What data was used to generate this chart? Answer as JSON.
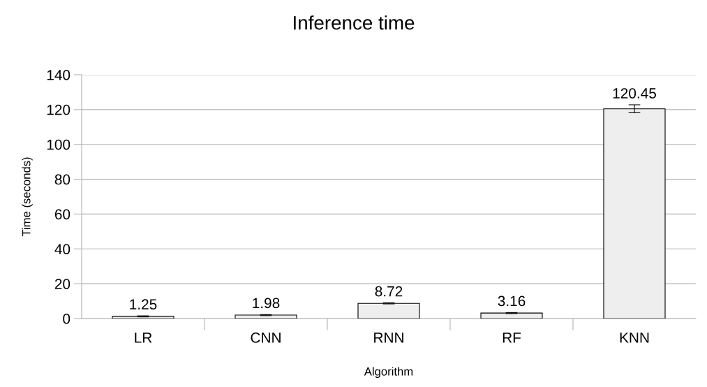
{
  "chart_data": {
    "type": "bar",
    "title": "Inference time",
    "xlabel": "Algorithm",
    "ylabel": "Time (seconds)",
    "categories": [
      "LR",
      "CNN",
      "RNN",
      "RF",
      "KNN"
    ],
    "values": [
      1.25,
      1.98,
      8.72,
      3.16,
      120.45
    ],
    "errors": [
      0.3,
      0.3,
      0.3,
      0.3,
      2.3
    ],
    "color": "#eeeeee",
    "data_labels": true,
    "ylim": [
      0,
      140
    ],
    "yticks": [
      0,
      20,
      40,
      60,
      80,
      100,
      120,
      140
    ],
    "grid": "y",
    "legend": false
  }
}
